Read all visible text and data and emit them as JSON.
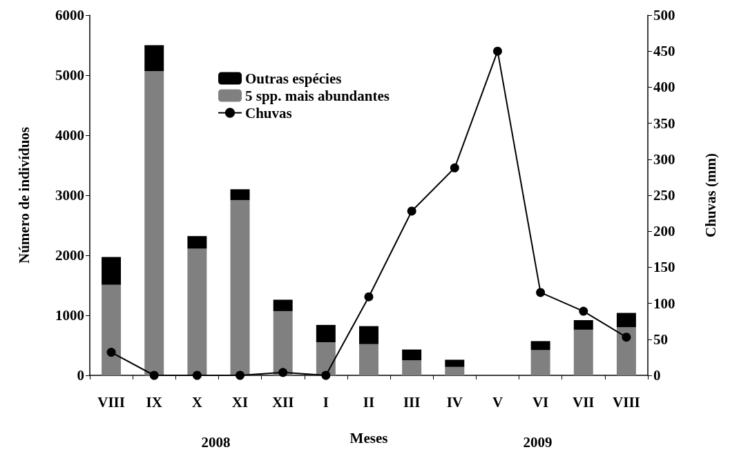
{
  "chart_data": {
    "type": "bar",
    "stacked": true,
    "xlabel": "Meses",
    "ylabel": "Número de indivíduos",
    "y2label": "Chuvas (mm)",
    "categories": [
      "VIII",
      "IX",
      "X",
      "XI",
      "XII",
      "I",
      "II",
      "III",
      "IV",
      "V",
      "VI",
      "VII",
      "VIII"
    ],
    "series": [
      {
        "name": "5 spp. mais abundantes",
        "color": "#808080",
        "values": [
          1510,
          5070,
          2110,
          2920,
          1070,
          550,
          520,
          250,
          140,
          0,
          420,
          760,
          800
        ]
      },
      {
        "name": "Outras espécies",
        "color": "#000000",
        "values": [
          460,
          430,
          210,
          180,
          190,
          290,
          300,
          180,
          120,
          0,
          150,
          160,
          240
        ]
      },
      {
        "name": "Chuvas",
        "type": "line",
        "axis": "y2",
        "color": "#000000",
        "marker": "circle",
        "line_style": "solid",
        "values": [
          32,
          0,
          0,
          0,
          4,
          0,
          109,
          228,
          288,
          450,
          115,
          89,
          53
        ]
      }
    ],
    "ylim": [
      0,
      6000
    ],
    "yticks": [
      0,
      1000,
      2000,
      3000,
      4000,
      5000,
      6000
    ],
    "y2lim": [
      0,
      500
    ],
    "y2ticks": [
      0,
      50,
      100,
      150,
      200,
      250,
      300,
      350,
      400,
      450,
      500
    ],
    "legend": "top",
    "grid": false,
    "annotations": [
      "2008",
      "2009"
    ]
  }
}
